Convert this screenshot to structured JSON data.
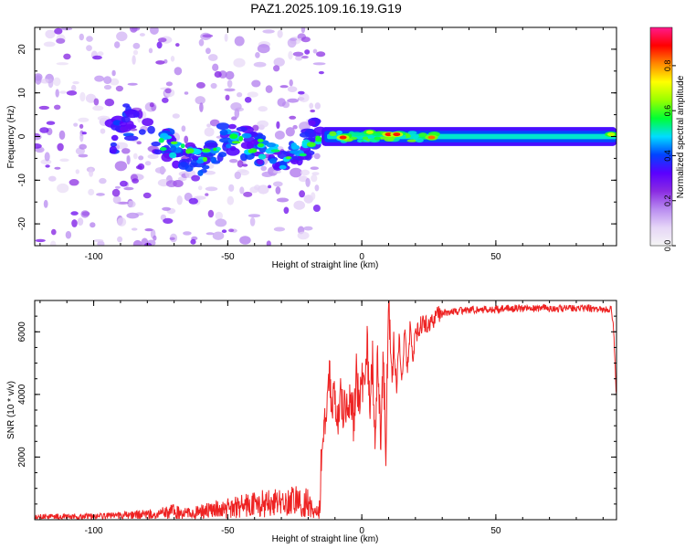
{
  "title": "PAZ1.2025.109.16.19.G19",
  "chart_data": [
    {
      "type": "heatmap",
      "xlabel": "Height of straight line (km)",
      "ylabel": "Frequency (Hz)",
      "xlim": [
        -122,
        95
      ],
      "ylim": [
        -25,
        25
      ],
      "xticks": [
        -100,
        -50,
        0,
        50
      ],
      "yticks": [
        -20,
        -10,
        0,
        10,
        20
      ],
      "grid": false,
      "colorbar": {
        "label": "Normalized spectral amplitude",
        "range": [
          0,
          0.97
        ],
        "ticks": [
          0.0,
          0.2,
          0.4,
          0.6,
          0.8
        ],
        "colormap": [
          "#f5f5f5",
          "#e6d6f7",
          "#b98cf0",
          "#8a2be2",
          "#5a00ff",
          "#0044ff",
          "#00ddff",
          "#00ff33",
          "#99ff00",
          "#ffff00",
          "#ff8800",
          "#ff0000",
          "#ff1a8c"
        ]
      },
      "features": {
        "noise_region_x": [
          -122,
          -15
        ],
        "ridge": [
          [
            -92,
            5
          ],
          [
            -80,
            1
          ],
          [
            -70,
            -3
          ],
          [
            -60,
            -6
          ],
          [
            -50,
            0
          ],
          [
            -40,
            -2
          ],
          [
            -30,
            -5
          ],
          [
            -22,
            -3
          ],
          [
            -18,
            1
          ],
          [
            -10,
            0
          ],
          [
            0,
            1
          ],
          [
            20,
            0
          ],
          [
            95,
            0
          ]
        ],
        "carrier_band": {
          "x_start": -15,
          "x_end": 95,
          "frequency_center": 0,
          "half_width": 1.2,
          "amplitude": 0.5
        },
        "peaks": [
          {
            "x": -7,
            "y": -0.2,
            "value": 0.9
          },
          {
            "x": 10,
            "y": 0.5,
            "value": 0.9
          },
          {
            "x": 13,
            "y": 0.5,
            "value": 0.9
          },
          {
            "x": 26,
            "y": -0.2,
            "value": 0.85
          },
          {
            "x": 3,
            "y": 1.0,
            "value": 0.7
          },
          {
            "x": 93,
            "y": 0.5,
            "value": 0.7
          }
        ]
      }
    },
    {
      "type": "line",
      "xlabel": "Height of straight line (km)",
      "ylabel": "SNR (10 * v/v)",
      "xlim": [
        -122,
        95
      ],
      "ylim": [
        0,
        7000
      ],
      "xticks": [
        -100,
        -50,
        0,
        50
      ],
      "yticks": [
        2000,
        4000,
        6000
      ],
      "grid": false,
      "series": [
        {
          "color": "#ee2222",
          "x": [
            -122,
            -110,
            -100,
            -90,
            -80,
            -75,
            -70,
            -65,
            -60,
            -55,
            -50,
            -45,
            -40,
            -35,
            -30,
            -25,
            -20,
            -18,
            -16,
            -15,
            -14,
            -13,
            -12,
            -11,
            -10,
            -9,
            -8,
            -7,
            -6,
            -5,
            -4,
            -3,
            -2,
            -1,
            0,
            1,
            2,
            3,
            4,
            5,
            6,
            7,
            8,
            9,
            10,
            11,
            12,
            13,
            14,
            15,
            16,
            17,
            18,
            19,
            20,
            22,
            25,
            28,
            30,
            35,
            40,
            45,
            50,
            55,
            60,
            65,
            70,
            75,
            80,
            85,
            90,
            93,
            94,
            95
          ],
          "y": [
            100,
            100,
            110,
            130,
            170,
            200,
            260,
            200,
            250,
            320,
            360,
            430,
            480,
            520,
            560,
            620,
            550,
            200,
            300,
            1500,
            3000,
            3500,
            4600,
            3600,
            4000,
            3100,
            4200,
            3300,
            3700,
            3400,
            3900,
            3000,
            4800,
            3500,
            4600,
            3800,
            5600,
            3600,
            5100,
            2800,
            5300,
            2500,
            5300,
            2200,
            7000,
            4800,
            5500,
            4200,
            5800,
            4500,
            6000,
            4700,
            6100,
            5200,
            5900,
            6200,
            6300,
            6500,
            6600,
            6650,
            6700,
            6700,
            6720,
            6750,
            6750,
            6750,
            6750,
            6750,
            6750,
            6750,
            6700,
            6750,
            6000,
            3900
          ]
        }
      ]
    }
  ]
}
